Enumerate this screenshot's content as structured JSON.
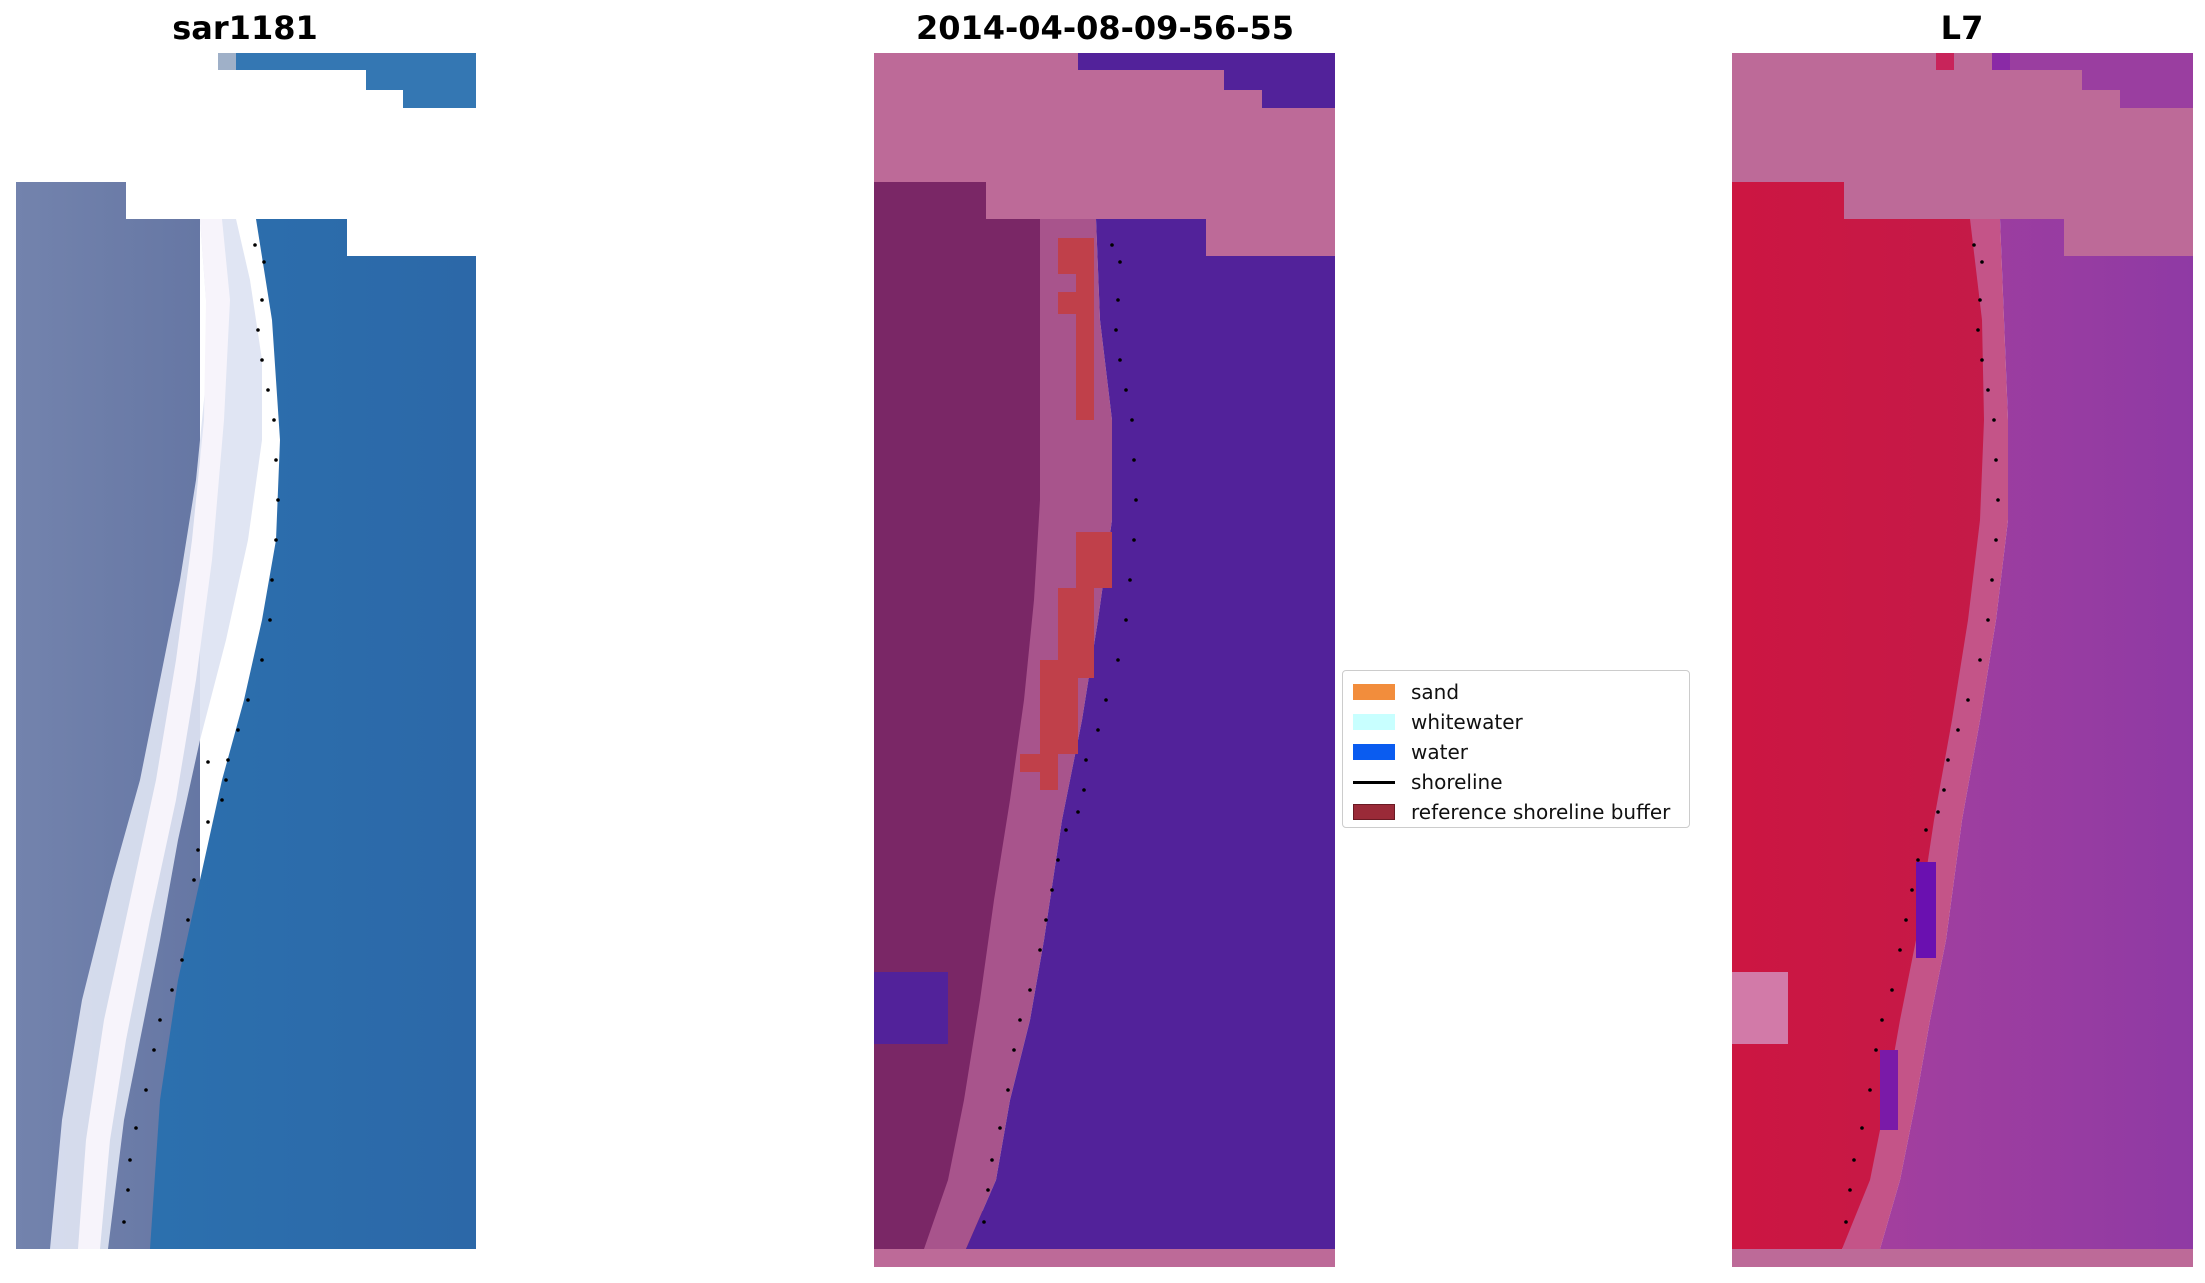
{
  "panels": [
    {
      "title": "sar1181"
    },
    {
      "title": "2014-04-08-09-56-55"
    },
    {
      "title": "L7"
    }
  ],
  "legend": {
    "items": [
      {
        "label": "sand",
        "kind": "patch",
        "color": "#f28d3c"
      },
      {
        "label": "whitewater",
        "kind": "patch",
        "color": "#c8ffff"
      },
      {
        "label": "water",
        "kind": "patch",
        "color": "#0a5cf0"
      },
      {
        "label": "shoreline",
        "kind": "line",
        "color": "#000000"
      },
      {
        "label": "reference shoreline buffer",
        "kind": "patch",
        "color": "#9a2a38"
      }
    ]
  },
  "colors": {
    "rgb_land": "#6f7fa8",
    "rgb_sea": "#2f72b0",
    "rgb_surf": "#e8ecf6",
    "class_land": "#7a2766",
    "class_nodata": "#bd6a98",
    "class_water": "#52229a",
    "class_buffer": "#c0404a",
    "index_land": "#c81540",
    "index_sea": "#9a3ea0",
    "shoreline_points": "#000000"
  }
}
